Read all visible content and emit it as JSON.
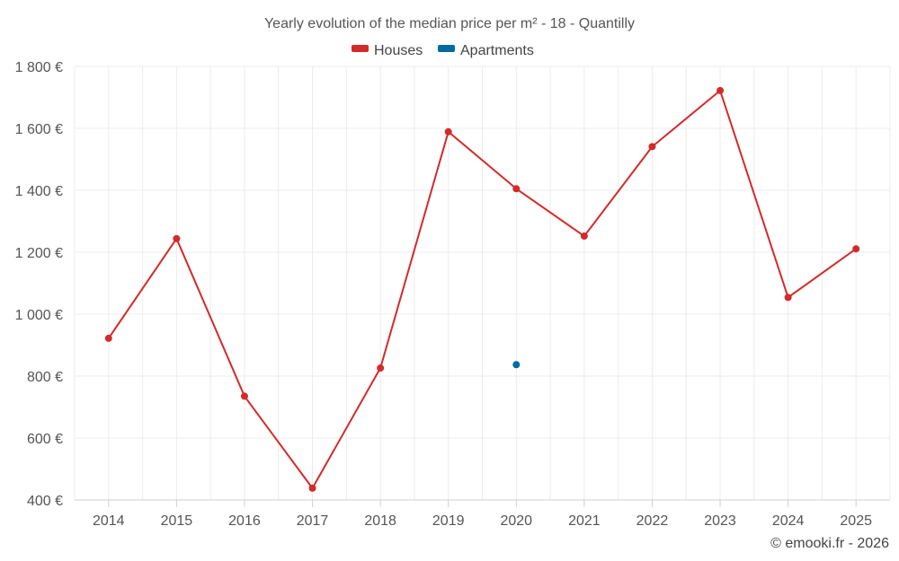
{
  "chart_data": {
    "type": "line",
    "title": "Yearly evolution of the median price per m² - 18 - Quantilly",
    "categories": [
      "2014",
      "2015",
      "2016",
      "2017",
      "2018",
      "2019",
      "2020",
      "2021",
      "2022",
      "2023",
      "2024",
      "2025"
    ],
    "series": [
      {
        "name": "Houses",
        "color": "#d42a2a",
        "values": [
          922,
          1244,
          735,
          438,
          826,
          1589,
          1405,
          1252,
          1541,
          1722,
          1054,
          1211
        ]
      },
      {
        "name": "Apartments",
        "color": "#006ba2",
        "values": [
          null,
          null,
          null,
          null,
          null,
          null,
          837,
          null,
          null,
          null,
          null,
          null
        ]
      }
    ],
    "yticks": [
      400,
      600,
      800,
      1000,
      1200,
      1400,
      1600,
      1800
    ],
    "ytick_labels": [
      "400 €",
      "600 €",
      "800 €",
      "1 000 €",
      "1 200 €",
      "1 400 €",
      "1 600 €",
      "1 800 €"
    ],
    "ylim": [
      400,
      1800
    ],
    "xlabel": "",
    "ylabel": "",
    "grid": true,
    "legend_position": "top-center",
    "credit": "© emooki.fr - 2026"
  }
}
